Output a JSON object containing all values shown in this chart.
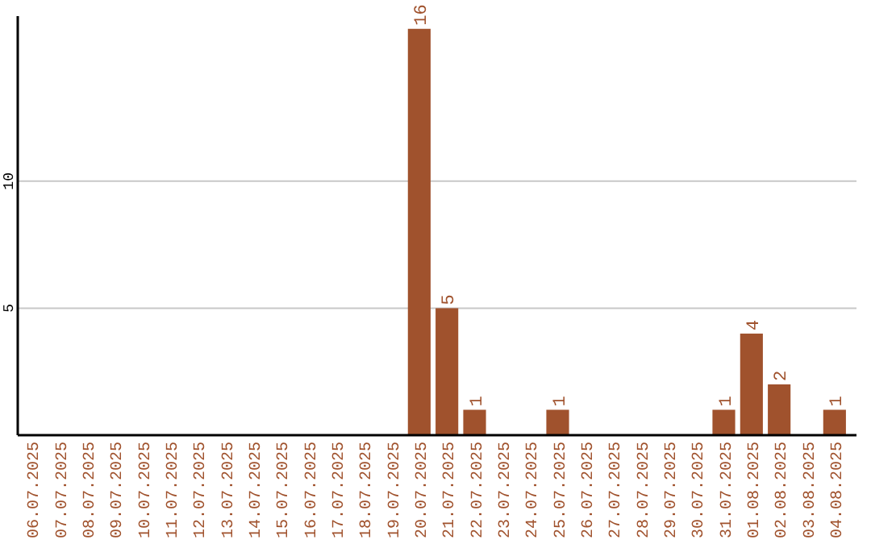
{
  "chart_data": {
    "type": "bar",
    "categories": [
      "06.07.2025",
      "07.07.2025",
      "08.07.2025",
      "09.07.2025",
      "10.07.2025",
      "11.07.2025",
      "12.07.2025",
      "13.07.2025",
      "14.07.2025",
      "15.07.2025",
      "16.07.2025",
      "17.07.2025",
      "18.07.2025",
      "19.07.2025",
      "20.07.2025",
      "21.07.2025",
      "22.07.2025",
      "23.07.2025",
      "24.07.2025",
      "25.07.2025",
      "26.07.2025",
      "27.07.2025",
      "28.07.2025",
      "29.07.2025",
      "30.07.2025",
      "31.07.2025",
      "01.08.2025",
      "02.08.2025",
      "03.08.2025",
      "04.08.2025"
    ],
    "values": [
      0,
      0,
      0,
      0,
      0,
      0,
      0,
      0,
      0,
      0,
      0,
      0,
      0,
      0,
      16,
      5,
      1,
      0,
      0,
      1,
      0,
      0,
      0,
      0,
      0,
      1,
      4,
      2,
      0,
      1
    ],
    "value_labels": [
      null,
      null,
      null,
      null,
      null,
      null,
      null,
      null,
      null,
      null,
      null,
      null,
      null,
      null,
      "16",
      "5",
      "1",
      null,
      null,
      "1",
      null,
      null,
      null,
      null,
      null,
      "1",
      "4",
      "2",
      null,
      "1"
    ],
    "color": "#a0522d",
    "ylim": [
      0,
      16.5
    ],
    "yticks": [
      5,
      10
    ],
    "grid": "y"
  }
}
